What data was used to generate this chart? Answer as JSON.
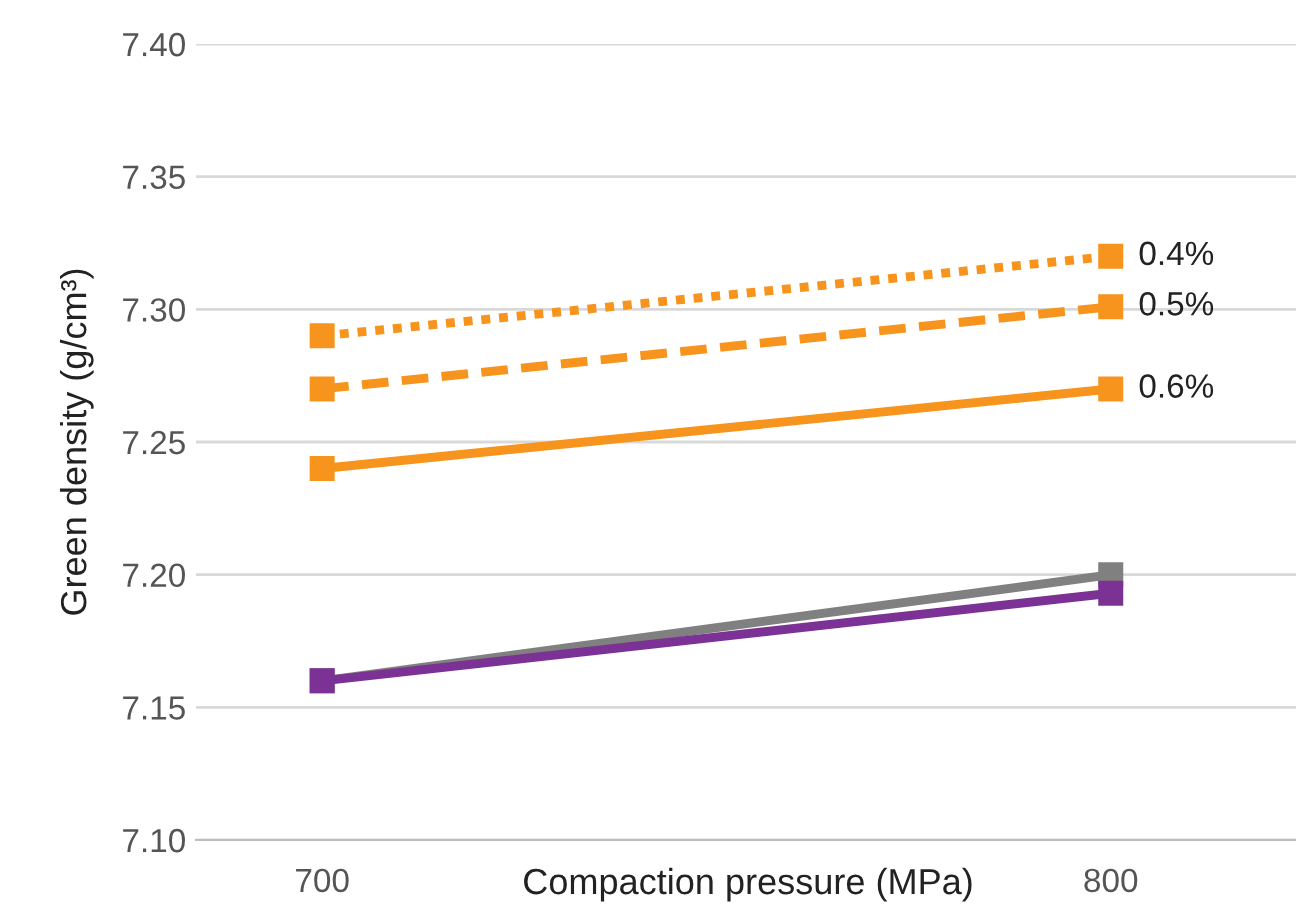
{
  "chart_data": {
    "type": "line",
    "xlabel": "Compaction pressure (MPa)",
    "ylabel": "Green density (g/cm³)",
    "x": [
      700,
      800
    ],
    "xlim": [
      684,
      824
    ],
    "xticks": [
      700,
      800
    ],
    "ylim": [
      7.1,
      7.4
    ],
    "yticks": [
      {
        "value": 7.1,
        "label": "7.10"
      },
      {
        "value": 7.15,
        "label": "7.15"
      },
      {
        "value": 7.2,
        "label": "7.20"
      },
      {
        "value": 7.25,
        "label": "7.25"
      },
      {
        "value": 7.3,
        "label": "7.30"
      },
      {
        "value": 7.35,
        "label": "7.35"
      },
      {
        "value": 7.4,
        "label": "7.40"
      }
    ],
    "grid": "y",
    "legend": false,
    "marker": "square",
    "series": [
      {
        "name": "0.4%",
        "color": "#f7941d",
        "line_style": "dotted",
        "values": [
          7.29,
          7.32
        ]
      },
      {
        "name": "0.5%",
        "color": "#f7941d",
        "line_style": "dashed",
        "values": [
          7.27,
          7.301
        ]
      },
      {
        "name": "0.6%",
        "color": "#f7941d",
        "line_style": "solid",
        "values": [
          7.24,
          7.27
        ]
      },
      {
        "color": "#808080",
        "line_style": "solid",
        "values": [
          7.16,
          7.2
        ]
      },
      {
        "color": "#7b3294",
        "line_style": "solid",
        "values": [
          7.16,
          7.193
        ]
      }
    ]
  }
}
